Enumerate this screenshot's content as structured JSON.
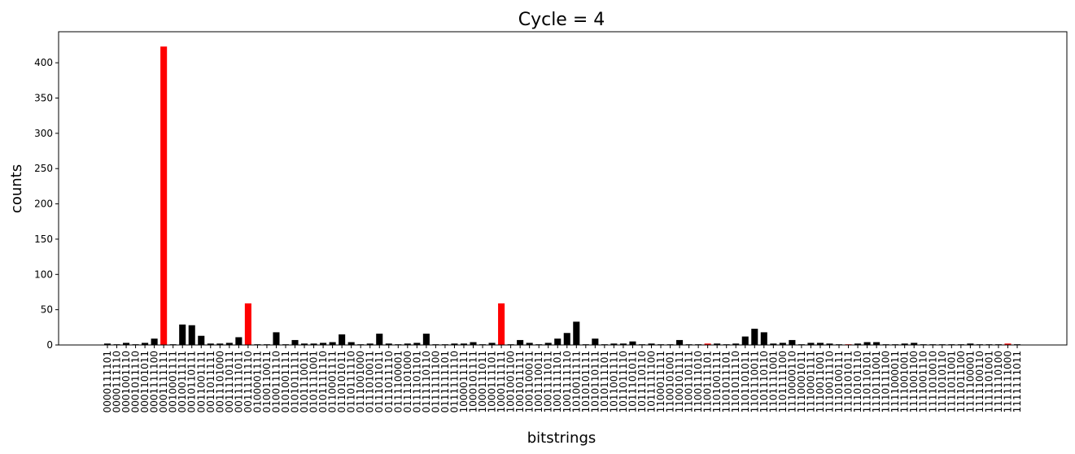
{
  "chart_data": {
    "type": "bar",
    "title": "Cycle  = 4",
    "x_label": "bitstrings",
    "y_label": "counts",
    "categories": [
      "0000111101",
      "0000111110",
      "0001001110",
      "0001011110",
      "0001101011",
      "0001111100",
      "0001111111",
      "0010001111",
      "0010011111",
      "0010110111",
      "0011001111",
      "0011011111",
      "0011101000",
      "0011110111",
      "0011111011",
      "0011111110",
      "0100001111",
      "0100110011",
      "0100111110",
      "0101001111",
      "0101011111",
      "0101110011",
      "0101111001",
      "0101111110",
      "0110001111",
      "0110101011",
      "0110111110",
      "0111001000",
      "0111010011",
      "0111011011",
      "0111011110",
      "0111100001",
      "0111101000",
      "0111101101",
      "0111110110",
      "0111111100",
      "0111111101",
      "0111111110",
      "1000011111",
      "1000101111",
      "1000111011",
      "1000111101",
      "1000111111",
      "1001001100",
      "1001011111",
      "1001100011",
      "1001110011",
      "1001111011",
      "1001111101",
      "1001111110",
      "1010011111",
      "1010101111",
      "1010110111",
      "1010111101",
      "1011001111",
      "1011011110",
      "1011101011",
      "1011110110",
      "1011111100",
      "1100011111",
      "1100101001",
      "1100101111",
      "1100110111",
      "1100111010",
      "1100111101",
      "1101001111",
      "1101011101",
      "1101011110",
      "1101101011",
      "1101110011",
      "1101110110",
      "1101111001",
      "1101111100",
      "1110000110",
      "1110001011",
      "1110001111",
      "1110011001",
      "1110011110",
      "1110100111",
      "1110101011",
      "1110101110",
      "1110110101",
      "1110111001",
      "1110111100",
      "1111000011",
      "1111001001",
      "1111001100",
      "1111001110",
      "1111010010",
      "1111010110",
      "1111011001",
      "1111011100",
      "1111100001",
      "1111100110",
      "1111101001",
      "1111110100",
      "1111111000",
      "1111111011"
    ],
    "values": [
      2,
      1,
      3,
      1,
      3,
      9,
      423,
      1,
      29,
      28,
      13,
      2,
      2,
      3,
      11,
      59,
      1,
      1,
      18,
      1,
      7,
      2,
      2,
      3,
      4,
      15,
      4,
      1,
      2,
      16,
      2,
      1,
      2,
      3,
      16,
      1,
      1,
      2,
      2,
      4,
      1,
      3,
      59,
      1,
      7,
      3,
      1,
      3,
      9,
      17,
      33,
      1,
      9,
      1,
      2,
      2,
      5,
      1,
      2,
      1,
      1,
      7,
      1,
      1,
      2,
      2,
      1,
      2,
      12,
      23,
      18,
      2,
      3,
      7,
      1,
      3,
      3,
      2,
      1,
      1,
      2,
      4,
      4,
      1,
      1,
      2,
      3,
      1,
      1,
      1,
      1,
      1,
      2,
      1,
      1,
      1,
      2,
      1
    ],
    "colors": [
      "black",
      "black",
      "black",
      "black",
      "black",
      "black",
      "red",
      "black",
      "black",
      "black",
      "black",
      "black",
      "black",
      "black",
      "black",
      "red",
      "black",
      "black",
      "black",
      "black",
      "black",
      "black",
      "black",
      "black",
      "black",
      "black",
      "black",
      "black",
      "black",
      "black",
      "black",
      "black",
      "black",
      "black",
      "black",
      "black",
      "black",
      "black",
      "black",
      "black",
      "black",
      "black",
      "red",
      "black",
      "black",
      "black",
      "black",
      "black",
      "black",
      "black",
      "black",
      "black",
      "black",
      "black",
      "black",
      "black",
      "black",
      "black",
      "black",
      "black",
      "black",
      "black",
      "black",
      "black",
      "red",
      "black",
      "black",
      "black",
      "black",
      "black",
      "black",
      "black",
      "black",
      "black",
      "black",
      "black",
      "black",
      "black",
      "black",
      "red",
      "black",
      "black",
      "black",
      "black",
      "black",
      "black",
      "black",
      "black",
      "black",
      "black",
      "black",
      "black",
      "black",
      "black",
      "black",
      "black",
      "red",
      "black"
    ],
    "ylim": [
      0,
      444
    ],
    "yticks": [
      0,
      50,
      100,
      150,
      200,
      250,
      300,
      350,
      400
    ]
  }
}
